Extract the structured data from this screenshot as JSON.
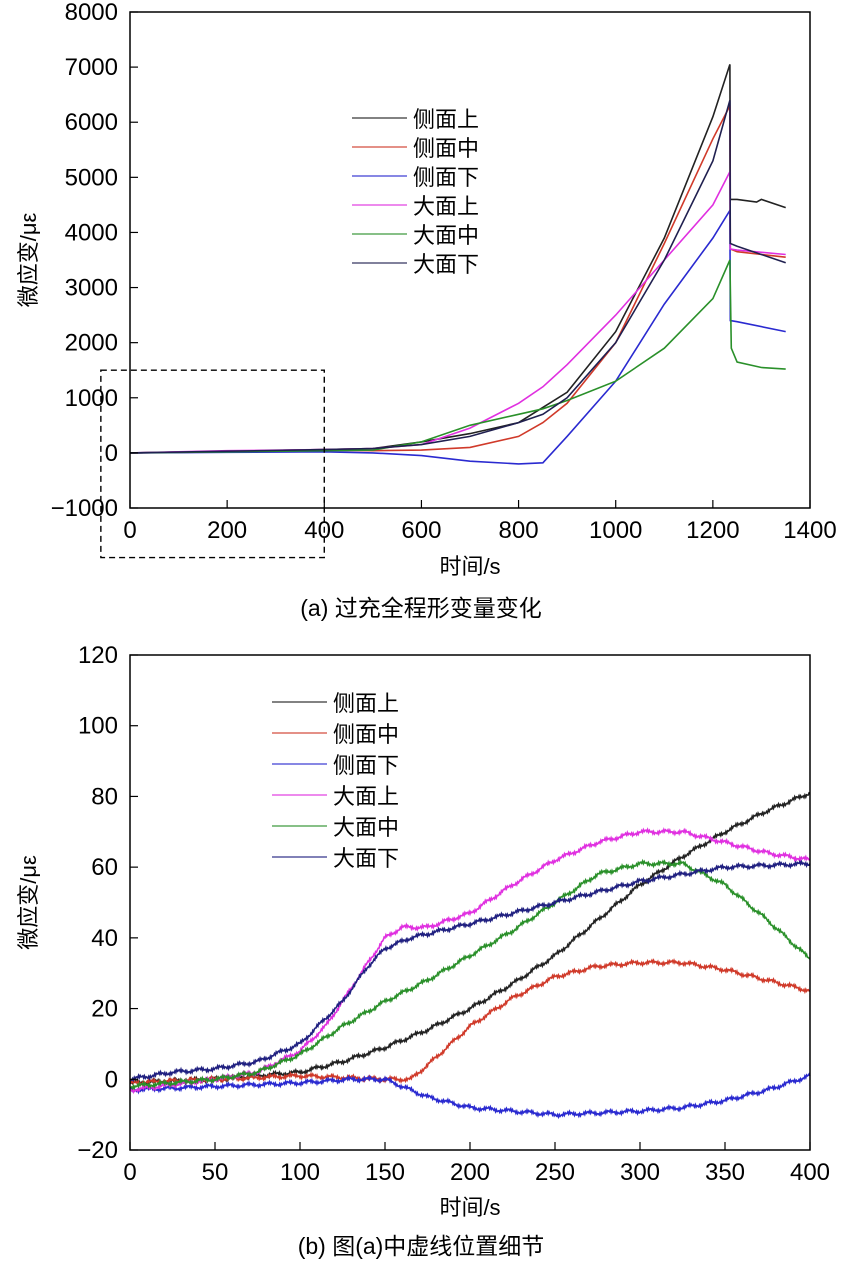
{
  "chart_data": [
    {
      "type": "line",
      "caption": "(a) 过充全程形变量变化",
      "xlabel": "时间/s",
      "ylabel": "微应变/με",
      "xlim": [
        0,
        1400
      ],
      "ylim": [
        -1000,
        8000
      ],
      "xticks": [
        0,
        200,
        400,
        600,
        800,
        1000,
        1200,
        1400
      ],
      "yticks": [
        -1000,
        0,
        1000,
        2000,
        3000,
        4000,
        5000,
        6000,
        7000,
        8000
      ],
      "grid": false,
      "legend_position": "top-center",
      "dashed_box": {
        "x": [
          -60,
          400
        ],
        "y": [
          -1900,
          1500
        ]
      },
      "series": [
        {
          "name": "侧面上",
          "color": "#222222",
          "x": [
            0,
            200,
            400,
            500,
            600,
            700,
            800,
            900,
            1000,
            1100,
            1200,
            1235,
            1236,
            1250,
            1290,
            1300,
            1350
          ],
          "y": [
            0,
            30,
            60,
            80,
            200,
            350,
            550,
            1100,
            2200,
            3900,
            6100,
            7050,
            4600,
            4600,
            4550,
            4600,
            4450
          ]
        },
        {
          "name": "侧面中",
          "color": "#d03a2a",
          "x": [
            0,
            200,
            400,
            500,
            600,
            700,
            800,
            850,
            900,
            1000,
            1100,
            1200,
            1235,
            1236,
            1250,
            1350
          ],
          "y": [
            0,
            20,
            50,
            40,
            50,
            100,
            300,
            550,
            900,
            2000,
            3800,
            5700,
            6300,
            3700,
            3650,
            3550
          ]
        },
        {
          "name": "侧面下",
          "color": "#2a2ad0",
          "x": [
            0,
            200,
            400,
            500,
            600,
            700,
            800,
            850,
            900,
            1000,
            1100,
            1200,
            1235,
            1236,
            1250,
            1350
          ],
          "y": [
            0,
            10,
            20,
            0,
            -50,
            -150,
            -200,
            -180,
            300,
            1300,
            2700,
            3900,
            4400,
            2400,
            2380,
            2200
          ]
        },
        {
          "name": "大面上",
          "color": "#e030e0",
          "x": [
            0,
            200,
            400,
            500,
            600,
            700,
            800,
            850,
            900,
            1000,
            1100,
            1200,
            1235,
            1236,
            1250,
            1350
          ],
          "y": [
            0,
            40,
            60,
            80,
            150,
            450,
            900,
            1200,
            1600,
            2500,
            3500,
            4500,
            5100,
            3700,
            3680,
            3600
          ]
        },
        {
          "name": "大面中",
          "color": "#2a902a",
          "x": [
            0,
            200,
            400,
            500,
            600,
            700,
            800,
            850,
            900,
            1000,
            1100,
            1200,
            1235,
            1238,
            1250,
            1300,
            1350
          ],
          "y": [
            0,
            20,
            40,
            50,
            200,
            500,
            700,
            800,
            950,
            1300,
            1900,
            2800,
            3500,
            1900,
            1650,
            1550,
            1520
          ]
        },
        {
          "name": "大面下",
          "color": "#202050",
          "x": [
            0,
            200,
            400,
            500,
            600,
            700,
            800,
            850,
            900,
            1000,
            1100,
            1200,
            1235,
            1236,
            1250,
            1350
          ],
          "y": [
            0,
            30,
            60,
            80,
            150,
            300,
            550,
            700,
            1000,
            2000,
            3500,
            5300,
            6400,
            3800,
            3750,
            3450
          ]
        }
      ]
    },
    {
      "type": "line",
      "caption": "(b) 图(a)中虚线位置细节",
      "xlabel": "时间/s",
      "ylabel": "微应变/με",
      "xlim": [
        0,
        400
      ],
      "ylim": [
        -20,
        120
      ],
      "xticks": [
        0,
        50,
        100,
        150,
        200,
        250,
        300,
        350,
        400
      ],
      "yticks": [
        -20,
        0,
        20,
        40,
        60,
        80,
        100,
        120
      ],
      "grid": false,
      "legend_position": "top-left",
      "series": [
        {
          "name": "侧面上",
          "color": "#222222",
          "x": [
            0,
            50,
            100,
            125,
            150,
            175,
            200,
            225,
            250,
            275,
            300,
            325,
            350,
            375,
            400
          ],
          "y": [
            -1,
            0,
            2,
            5,
            9,
            14,
            20,
            27,
            35,
            45,
            55,
            63,
            70,
            76,
            81
          ]
        },
        {
          "name": "侧面中",
          "color": "#d03a2a",
          "x": [
            0,
            50,
            100,
            150,
            165,
            175,
            200,
            225,
            250,
            275,
            300,
            325,
            350,
            375,
            400
          ],
          "y": [
            -1,
            0,
            1,
            0,
            0,
            4,
            15,
            23,
            29,
            32,
            33,
            33,
            31,
            28,
            25
          ]
        },
        {
          "name": "侧面下",
          "color": "#2a2ad0",
          "x": [
            0,
            50,
            100,
            130,
            150,
            175,
            200,
            225,
            250,
            275,
            300,
            325,
            350,
            375,
            400
          ],
          "y": [
            -3,
            -2,
            -1,
            0,
            0,
            -5,
            -8,
            -9,
            -10,
            -9.5,
            -9,
            -8,
            -6,
            -3,
            1
          ]
        },
        {
          "name": "大面上",
          "color": "#e030e0",
          "x": [
            0,
            50,
            75,
            100,
            115,
            125,
            140,
            150,
            160,
            175,
            200,
            225,
            250,
            275,
            300,
            325,
            350,
            375,
            400
          ],
          "y": [
            -3,
            0,
            2,
            8,
            15,
            22,
            33,
            40,
            43,
            43,
            47,
            55,
            62,
            67,
            70,
            70,
            67,
            64,
            62
          ]
        },
        {
          "name": "大面中",
          "color": "#2a902a",
          "x": [
            0,
            50,
            75,
            100,
            125,
            150,
            175,
            200,
            225,
            250,
            275,
            300,
            325,
            350,
            375,
            400
          ],
          "y": [
            -2,
            0,
            2,
            7,
            15,
            22,
            28,
            35,
            42,
            50,
            58,
            61,
            61,
            55,
            45,
            34
          ]
        },
        {
          "name": "大面下",
          "color": "#202080",
          "x": [
            0,
            25,
            50,
            75,
            100,
            125,
            140,
            150,
            165,
            200,
            250,
            300,
            350,
            400
          ],
          "y": [
            0,
            2,
            3,
            5,
            10,
            22,
            32,
            37,
            40,
            44,
            50,
            56,
            60,
            61
          ]
        }
      ]
    }
  ]
}
